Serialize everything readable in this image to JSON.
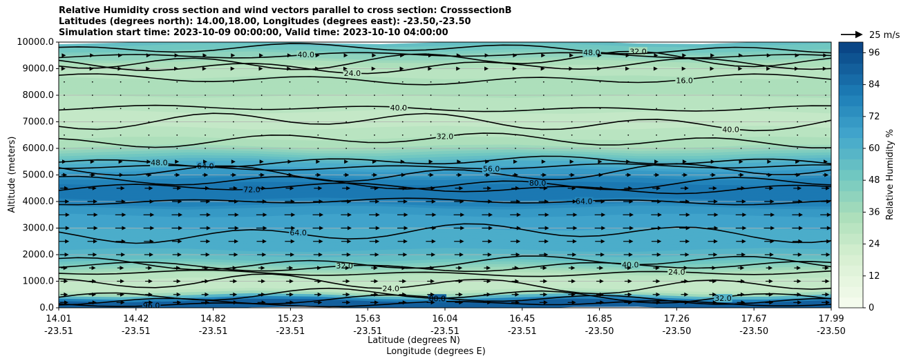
{
  "chart_data": {
    "type": "contour",
    "title_lines": [
      "Relative Humidity cross section and wind vectors parallel to cross section: CrosssectionB",
      "Latitudes (degrees north): 14.00,18.00, Longitudes (degrees east): -23.50,-23.50",
      "Simulation start time: 2023-10-09 00:00:00, Valid time: 2023-10-10 04:00:00"
    ],
    "ylabel": "Altitude (meters)",
    "xlabel_lat": "Latitude (degrees N)",
    "xlabel_lon": "Longitude (degrees E)",
    "ylim": [
      0,
      10000
    ],
    "y_ticks": [
      "0.0",
      "1000.0",
      "2000.0",
      "3000.0",
      "4000.0",
      "5000.0",
      "6000.0",
      "7000.0",
      "8000.0",
      "9000.0",
      "10000.0"
    ],
    "x_ticks": [
      {
        "lat": "14.01",
        "lon": "-23.51"
      },
      {
        "lat": "14.42",
        "lon": "-23.51"
      },
      {
        "lat": "14.82",
        "lon": "-23.51"
      },
      {
        "lat": "15.23",
        "lon": "-23.51"
      },
      {
        "lat": "15.63",
        "lon": "-23.51"
      },
      {
        "lat": "16.04",
        "lon": "-23.51"
      },
      {
        "lat": "16.45",
        "lon": "-23.51"
      },
      {
        "lat": "16.85",
        "lon": "-23.50"
      },
      {
        "lat": "17.26",
        "lon": "-23.50"
      },
      {
        "lat": "17.67",
        "lon": "-23.50"
      },
      {
        "lat": "17.99",
        "lon": "-23.50"
      }
    ],
    "colorbar": {
      "label": "Relative Humidity %",
      "ticks": [
        "0",
        "12",
        "24",
        "36",
        "48",
        "60",
        "72",
        "84",
        "96"
      ],
      "range": [
        0,
        100
      ],
      "levels": 25
    },
    "quiver_key": "25 m/s",
    "grid": "horizontal",
    "profile": [
      {
        "alt": 0,
        "rh": 92
      },
      {
        "alt": 300,
        "rh": 88
      },
      {
        "alt": 600,
        "rh": 30
      },
      {
        "alt": 1000,
        "rh": 24
      },
      {
        "alt": 1400,
        "rh": 36
      },
      {
        "alt": 1800,
        "rh": 52
      },
      {
        "alt": 2300,
        "rh": 62
      },
      {
        "alt": 3000,
        "rh": 64
      },
      {
        "alt": 3700,
        "rh": 70
      },
      {
        "alt": 4200,
        "rh": 82
      },
      {
        "alt": 4600,
        "rh": 84
      },
      {
        "alt": 5000,
        "rh": 72
      },
      {
        "alt": 5400,
        "rh": 62
      },
      {
        "alt": 5800,
        "rh": 46
      },
      {
        "alt": 6200,
        "rh": 34
      },
      {
        "alt": 7000,
        "rh": 26
      },
      {
        "alt": 7800,
        "rh": 30
      },
      {
        "alt": 8400,
        "rh": 36
      },
      {
        "alt": 9000,
        "rh": 28
      },
      {
        "alt": 9600,
        "rh": 44
      },
      {
        "alt": 10000,
        "rh": 56
      }
    ],
    "contour_lines": [
      {
        "label": "96.0",
        "alt": 150
      },
      {
        "label": "80.0",
        "alt": 300
      },
      {
        "label": "32.0",
        "alt": 450
      },
      {
        "label": "24.0",
        "alt": 900
      },
      {
        "label": "24.0",
        "alt": 1300
      },
      {
        "label": "32.0",
        "alt": 1550
      },
      {
        "label": "40.0",
        "alt": 1700
      },
      {
        "label": "64.0",
        "alt": 2800
      },
      {
        "label": "64.0",
        "alt": 4000
      },
      {
        "label": "72.0",
        "alt": 4500
      },
      {
        "label": "80.0",
        "alt": 4700
      },
      {
        "label": "64.0",
        "alt": 5100
      },
      {
        "label": "56.0",
        "alt": 5300
      },
      {
        "label": "48.0",
        "alt": 5500
      },
      {
        "label": "32.0",
        "alt": 6300
      },
      {
        "label": "40.0",
        "alt": 7000
      },
      {
        "label": "40.0",
        "alt": 7500
      },
      {
        "label": "16.0",
        "alt": 8600
      },
      {
        "label": "24.0",
        "alt": 9100
      },
      {
        "label": "32.0",
        "alt": 9300
      },
      {
        "label": "40.0",
        "alt": 9500
      },
      {
        "label": "48.0",
        "alt": 9750
      }
    ],
    "wind_rows": [
      {
        "alt": 200,
        "speed": 10
      },
      {
        "alt": 500,
        "speed": 9
      },
      {
        "alt": 1000,
        "speed": 9
      },
      {
        "alt": 1500,
        "speed": 8
      },
      {
        "alt": 2000,
        "speed": 11
      },
      {
        "alt": 2500,
        "speed": 12
      },
      {
        "alt": 3000,
        "speed": 13
      },
      {
        "alt": 3500,
        "speed": 13
      },
      {
        "alt": 4000,
        "speed": 12
      },
      {
        "alt": 4500,
        "speed": 10
      },
      {
        "alt": 5000,
        "speed": 7
      },
      {
        "alt": 5500,
        "speed": 5
      },
      {
        "alt": 6000,
        "speed": 2
      },
      {
        "alt": 6500,
        "speed": 1
      },
      {
        "alt": 7000,
        "speed": 1
      },
      {
        "alt": 7500,
        "speed": 1
      },
      {
        "alt": 8000,
        "speed": 1
      },
      {
        "alt": 8500,
        "speed": 2
      },
      {
        "alt": 9000,
        "speed": 3
      },
      {
        "alt": 9500,
        "speed": 4
      }
    ]
  }
}
